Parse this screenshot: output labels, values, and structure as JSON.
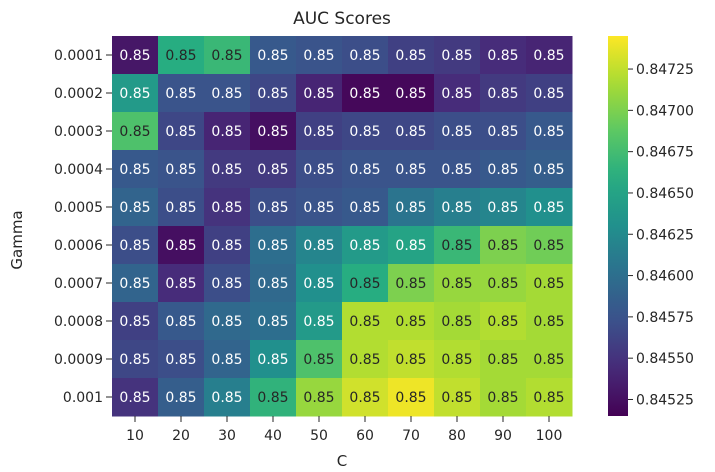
{
  "chart_data": {
    "type": "heatmap",
    "title": "AUC Scores",
    "xlabel": "C",
    "ylabel": "Gamma",
    "x_categories": [
      "10",
      "20",
      "30",
      "40",
      "50",
      "60",
      "70",
      "80",
      "90",
      "100"
    ],
    "y_categories": [
      "0.0001",
      "0.0002",
      "0.0003",
      "0.0004",
      "0.0005",
      "0.0006",
      "0.0007",
      "0.0008",
      "0.0009",
      "0.001"
    ],
    "cell_label": "0.85",
    "colormap": "viridis",
    "colorbar": {
      "range": [
        0.84515,
        0.84745
      ],
      "ticks": [
        "0.84525",
        "0.84550",
        "0.84575",
        "0.84600",
        "0.84625",
        "0.84650",
        "0.84675",
        "0.84700",
        "0.84725"
      ]
    },
    "values": [
      [
        0.8453,
        0.8466,
        0.8467,
        0.8458,
        0.84575,
        0.8457,
        0.8456,
        0.84555,
        0.84545,
        0.8454
      ],
      [
        0.8464,
        0.84575,
        0.84575,
        0.84565,
        0.8454,
        0.8452,
        0.8452,
        0.84545,
        0.84555,
        0.8456
      ],
      [
        0.8468,
        0.84565,
        0.8454,
        0.84525,
        0.8456,
        0.84565,
        0.84565,
        0.8457,
        0.8457,
        0.8458
      ],
      [
        0.8458,
        0.84575,
        0.84555,
        0.84555,
        0.8457,
        0.84575,
        0.84575,
        0.84575,
        0.8458,
        0.84585
      ],
      [
        0.8459,
        0.8457,
        0.8455,
        0.8457,
        0.84575,
        0.8458,
        0.84605,
        0.84615,
        0.8462,
        0.8463
      ],
      [
        0.8457,
        0.84525,
        0.8456,
        0.846,
        0.8462,
        0.8464,
        0.8465,
        0.8467,
        0.847,
        0.84695
      ],
      [
        0.8459,
        0.84545,
        0.8457,
        0.84595,
        0.8463,
        0.8466,
        0.847,
        0.8471,
        0.8471,
        0.84715
      ],
      [
        0.8456,
        0.8458,
        0.84595,
        0.846,
        0.8464,
        0.8472,
        0.8472,
        0.84715,
        0.8472,
        0.84715
      ],
      [
        0.84565,
        0.8457,
        0.8459,
        0.8463,
        0.8468,
        0.8472,
        0.84725,
        0.8472,
        0.84715,
        0.84715
      ],
      [
        0.8455,
        0.84585,
        0.84615,
        0.84665,
        0.8471,
        0.8473,
        0.8474,
        0.84725,
        0.84715,
        0.8472
      ]
    ]
  }
}
